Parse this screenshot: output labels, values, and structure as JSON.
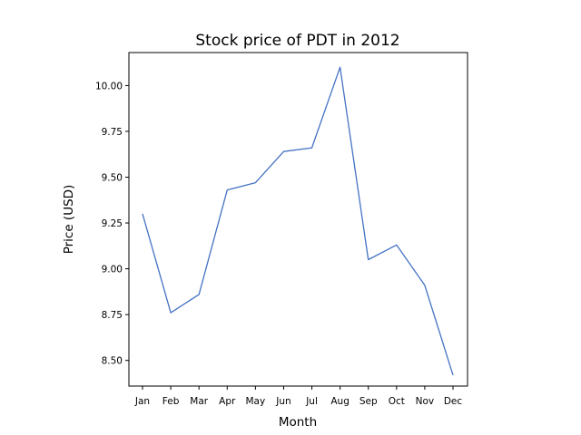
{
  "chart_data": {
    "type": "line",
    "title": "Stock price of PDT in 2012",
    "xlabel": "Month",
    "ylabel": "Price (USD)",
    "categories": [
      "Jan",
      "Feb",
      "Mar",
      "Apr",
      "May",
      "Jun",
      "Jul",
      "Aug",
      "Sep",
      "Oct",
      "Nov",
      "Dec"
    ],
    "series": [
      {
        "values": [
          9.3,
          8.76,
          8.86,
          9.43,
          9.47,
          9.64,
          9.66,
          10.1,
          9.05,
          9.13,
          8.91,
          8.42
        ]
      }
    ],
    "yticks": [
      "8.50",
      "8.75",
      "9.00",
      "9.25",
      "9.50",
      "9.75",
      "10.00"
    ],
    "ylim": [
      8.36,
      10.18
    ],
    "grid": false,
    "line_color": "#4472c4"
  }
}
